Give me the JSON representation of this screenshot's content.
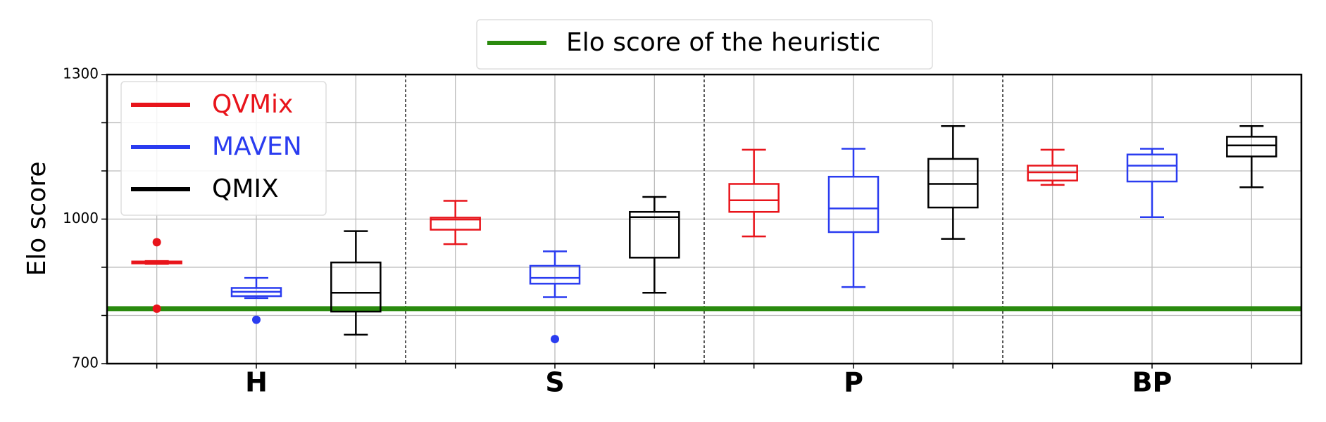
{
  "chart_data": {
    "type": "box",
    "ylabel": "Elo score",
    "categories": [
      "H",
      "S",
      "P",
      "BP"
    ],
    "ylim": [
      700,
      1300
    ],
    "yticks": [
      700,
      1000,
      1300
    ],
    "yminor_ticks": [
      800,
      900,
      1100,
      1200
    ],
    "grid": true,
    "legend": "upper left",
    "reference_line": {
      "name": "Elo score of the heuristic",
      "value": 814,
      "color": "#2a8a0e"
    },
    "series": [
      {
        "name": "QVMix",
        "color": "#e8141b",
        "boxes": [
          {
            "whislo": 907,
            "q1": 908,
            "med": 910,
            "q3": 912,
            "whishi": 913,
            "fliers": [
              952,
              814
            ]
          },
          {
            "whislo": 948,
            "q1": 978,
            "med": 999,
            "q3": 1003,
            "whishi": 1038
          },
          {
            "whislo": 964,
            "q1": 1015,
            "med": 1039,
            "q3": 1073,
            "whishi": 1144
          },
          {
            "whislo": 1071,
            "q1": 1080,
            "med": 1097,
            "q3": 1111,
            "whishi": 1144
          }
        ]
      },
      {
        "name": "MAVEN",
        "color": "#2a3cf0",
        "boxes": [
          {
            "whislo": 836,
            "q1": 840,
            "med": 849,
            "q3": 857,
            "whishi": 878,
            "fliers": [
              791
            ]
          },
          {
            "whislo": 838,
            "q1": 866,
            "med": 878,
            "q3": 903,
            "whishi": 933,
            "fliers": [
              751
            ]
          },
          {
            "whislo": 859,
            "q1": 973,
            "med": 1022,
            "q3": 1088,
            "whishi": 1146
          },
          {
            "whislo": 1004,
            "q1": 1078,
            "med": 1111,
            "q3": 1134,
            "whishi": 1146
          }
        ]
      },
      {
        "name": "QMIX",
        "color": "#000000",
        "boxes": [
          {
            "whislo": 760,
            "q1": 808,
            "med": 847,
            "q3": 910,
            "whishi": 975
          },
          {
            "whislo": 847,
            "q1": 920,
            "med": 1004,
            "q3": 1015,
            "whishi": 1046
          },
          {
            "whislo": 959,
            "q1": 1024,
            "med": 1073,
            "q3": 1125,
            "whishi": 1193
          },
          {
            "whislo": 1066,
            "q1": 1130,
            "med": 1153,
            "q3": 1171,
            "whishi": 1193
          }
        ]
      }
    ]
  }
}
